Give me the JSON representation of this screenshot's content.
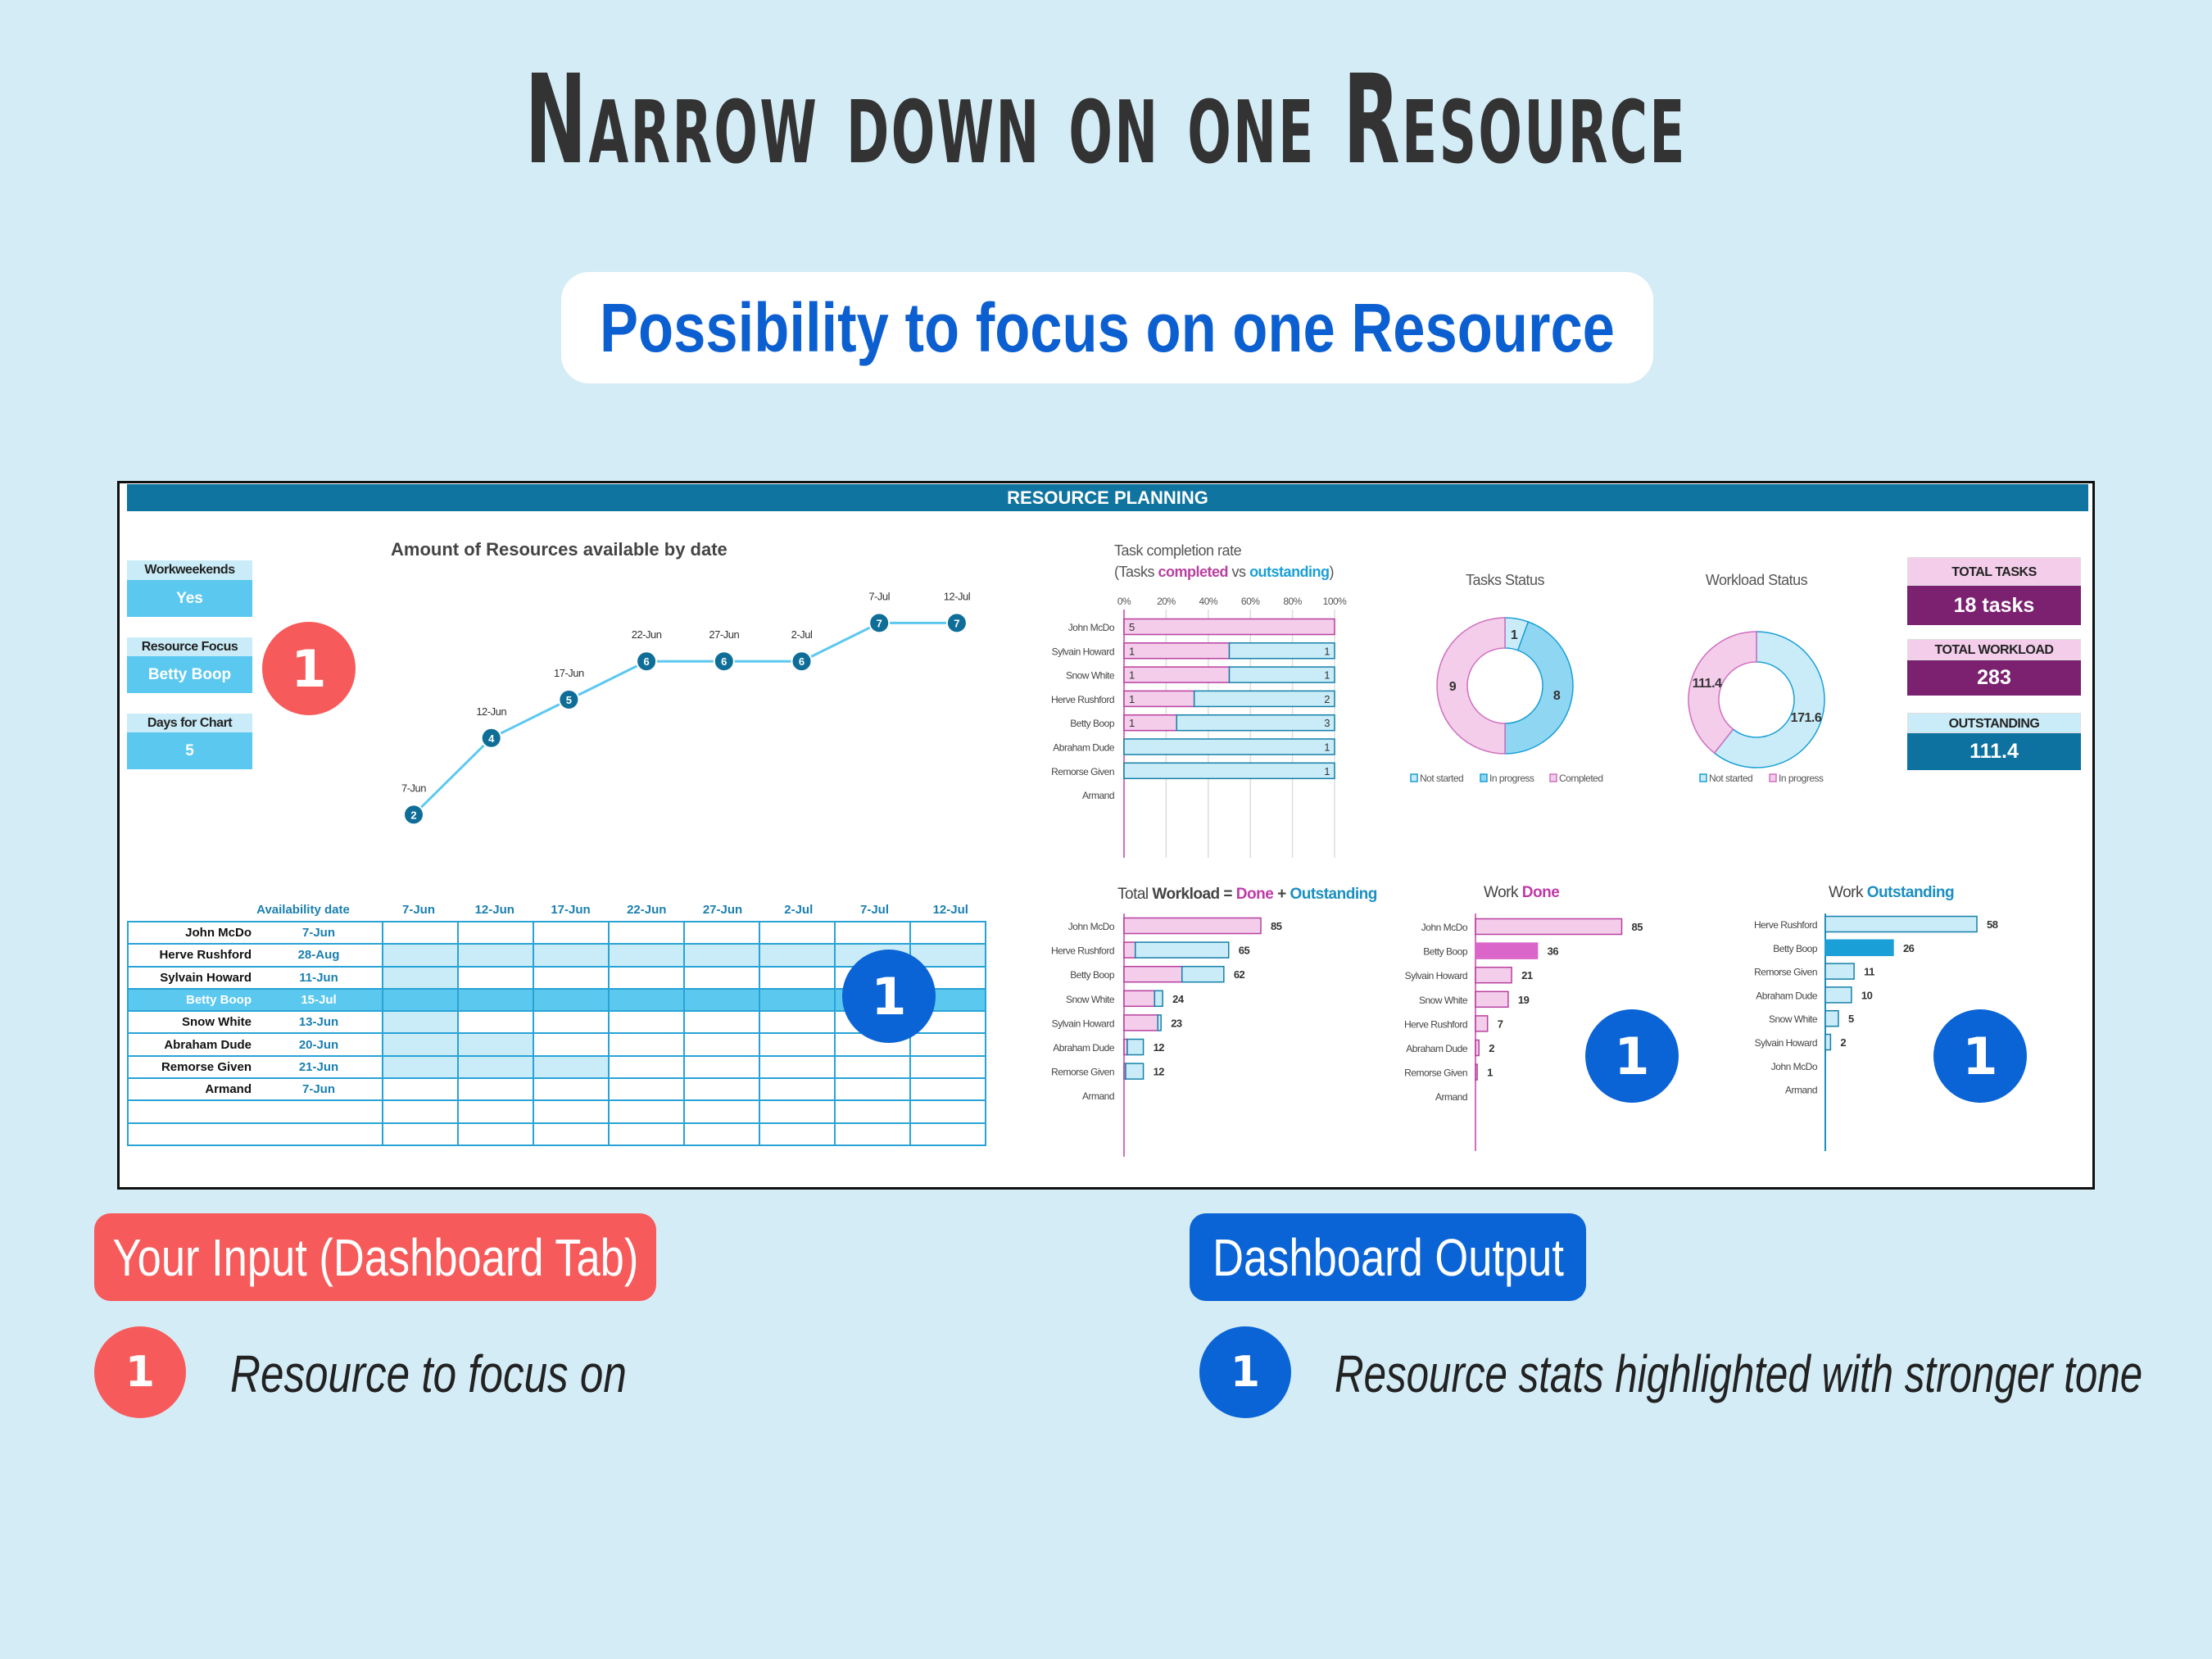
{
  "title": "Narrow down on one Resource",
  "subtitle": "Possibility to focus on one Resource",
  "dashboard": {
    "header": "RESOURCE PLANNING",
    "inputs": [
      {
        "label": "Workweekends",
        "value": "Yes"
      },
      {
        "label": "Resource Focus",
        "value": "Betty Boop"
      },
      {
        "label": "Days for Chart",
        "value": "5"
      }
    ],
    "kpis": [
      {
        "label": "TOTAL TASKS",
        "value": "18 tasks"
      },
      {
        "label": "TOTAL WORKLOAD",
        "value": "283"
      },
      {
        "label": "OUTSTANDING",
        "value": "111.4"
      }
    ],
    "availability_table": {
      "header": "Availability date",
      "dates": [
        "7-Jun",
        "12-Jun",
        "17-Jun",
        "22-Jun",
        "27-Jun",
        "2-Jul",
        "7-Jul",
        "12-Jul"
      ],
      "rows": [
        {
          "name": "John McDo",
          "date": "7-Jun",
          "unavailable_columns": 0,
          "focus": false
        },
        {
          "name": "Herve Rushford",
          "date": "28-Aug",
          "unavailable_columns": 8,
          "focus": false
        },
        {
          "name": "Sylvain Howard",
          "date": "11-Jun",
          "unavailable_columns": 1,
          "focus": false
        },
        {
          "name": "Betty Boop",
          "date": "15-Jul",
          "unavailable_columns": 8,
          "focus": true
        },
        {
          "name": "Snow White",
          "date": "13-Jun",
          "unavailable_columns": 1,
          "focus": false
        },
        {
          "name": "Abraham Dude",
          "date": "20-Jun",
          "unavailable_columns": 2,
          "focus": false
        },
        {
          "name": "Remorse Given",
          "date": "21-Jun",
          "unavailable_columns": 3,
          "focus": false
        },
        {
          "name": "Armand",
          "date": "7-Jun",
          "unavailable_columns": 0,
          "focus": false
        },
        {
          "name": "",
          "date": "",
          "unavailable_columns": 0,
          "focus": false
        },
        {
          "name": "",
          "date": "",
          "unavailable_columns": 0,
          "focus": false
        }
      ]
    }
  },
  "callouts": {
    "badge_number": "1",
    "input_title": "Your Input (Dashboard Tab)",
    "input_note": "Resource to focus on",
    "output_title": "Dashboard Output",
    "output_note": "Resource stats highlighted with stronger tone"
  },
  "colors": {
    "header": "#0f74a0",
    "done": "#f3cdea",
    "done_stroke": "#b8409f",
    "done_focus": "#d966c8",
    "outstanding": "#c9ecf8",
    "outstanding_stroke": "#1580a8",
    "outstanding_focus": "#1aa0d6",
    "in_progress": "#8fd6f2",
    "kpi_purple": "#7b2170",
    "kpi_teal": "#0d72a0",
    "input_red": "#f75a5a",
    "output_blue": "#0a64d6",
    "line": "#5bc8f0",
    "marker": "#0f6e98"
  },
  "chart_data": [
    {
      "id": "availability",
      "type": "line",
      "title": "Amount of Resources available by date",
      "x": [
        "7-Jun",
        "12-Jun",
        "17-Jun",
        "22-Jun",
        "27-Jun",
        "2-Jul",
        "7-Jul",
        "12-Jul"
      ],
      "y": [
        2,
        4,
        5,
        6,
        6,
        6,
        7,
        7
      ],
      "grid": false
    },
    {
      "id": "task_completion",
      "type": "bar",
      "stacked": "percent",
      "orientation": "horizontal",
      "title": "Task completion rate",
      "subtitle_parts": [
        "(Tasks ",
        "completed",
        " vs ",
        "outstanding",
        ")"
      ],
      "xticks": [
        "0%",
        "20%",
        "40%",
        "60%",
        "80%",
        "100%"
      ],
      "categories": [
        "John McDo",
        "Sylvain Howard",
        "Snow White",
        "Herve Rushford",
        "Betty Boop",
        "Abraham Dude",
        "Remorse Given",
        "Armand"
      ],
      "series": [
        {
          "name": "completed",
          "values": [
            5,
            1,
            1,
            1,
            1,
            0,
            0,
            0
          ]
        },
        {
          "name": "outstanding",
          "values": [
            0,
            1,
            1,
            2,
            3,
            1,
            1,
            0
          ]
        }
      ],
      "grid": true
    },
    {
      "id": "tasks_status",
      "type": "pie",
      "donut": true,
      "title": "Tasks Status",
      "labels": [
        "Not started",
        "In progress",
        "Completed"
      ],
      "values": [
        1,
        8,
        9
      ]
    },
    {
      "id": "workload_status",
      "type": "pie",
      "donut": true,
      "title": "Workload  Status",
      "labels": [
        "Not started",
        "In progress"
      ],
      "values": [
        171.6,
        111.4
      ]
    },
    {
      "id": "total_workload",
      "type": "bar",
      "stacked": true,
      "orientation": "horizontal",
      "title_parts": [
        "Total ",
        "Workload",
        " = ",
        "Done",
        " + ",
        "Outstanding"
      ],
      "categories": [
        "John McDo",
        "Herve Rushford",
        "Betty Boop",
        "Snow White",
        "Sylvain Howard",
        "Abraham Dude",
        "Remorse Given",
        "Armand"
      ],
      "series": [
        {
          "name": "Done",
          "values": [
            85,
            7,
            36,
            19,
            21,
            2,
            1,
            0
          ]
        },
        {
          "name": "Outstanding",
          "values": [
            0,
            58,
            26,
            5,
            2,
            10,
            11,
            0
          ]
        }
      ],
      "totals": [
        "85",
        "65",
        "62",
        "24",
        "23",
        "12",
        "12",
        ""
      ]
    },
    {
      "id": "work_done",
      "type": "bar",
      "orientation": "horizontal",
      "title_parts": [
        "Work ",
        "Done"
      ],
      "categories": [
        "John McDo",
        "Betty Boop",
        "Sylvain Howard",
        "Snow White",
        "Herve Rushford",
        "Abraham Dude",
        "Remorse Given",
        "Armand"
      ],
      "values": [
        85,
        36,
        21,
        19,
        7,
        2,
        1,
        0
      ],
      "highlight": "Betty Boop"
    },
    {
      "id": "work_outstanding",
      "type": "bar",
      "orientation": "horizontal",
      "title_parts": [
        "Work ",
        "Outstanding"
      ],
      "categories": [
        "Herve Rushford",
        "Betty Boop",
        "Remorse Given",
        "Abraham Dude",
        "Snow White",
        "Sylvain Howard",
        "John McDo",
        "Armand"
      ],
      "values": [
        58,
        26,
        11,
        10,
        5,
        2,
        0,
        0
      ],
      "highlight": "Betty Boop"
    }
  ]
}
